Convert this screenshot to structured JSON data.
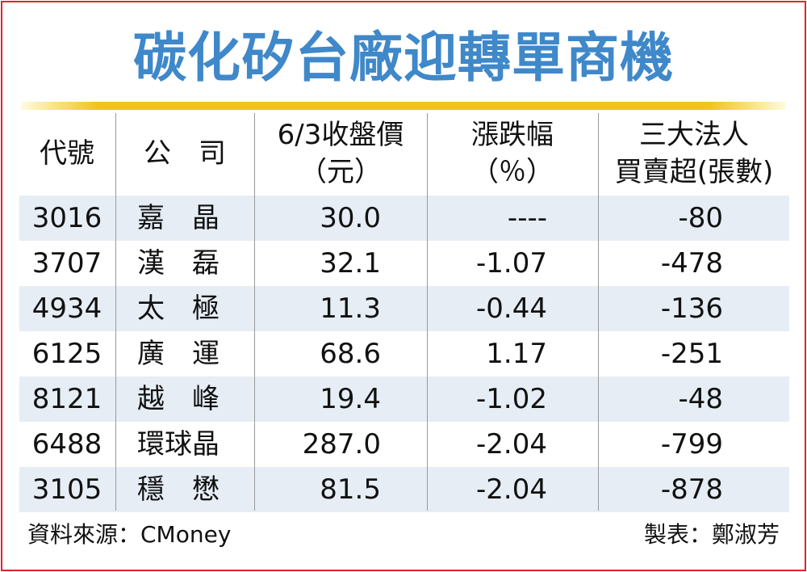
{
  "title": "碳化矽台廠迎轉單商機",
  "table": {
    "headers": [
      [
        "代號"
      ],
      [
        "公　司"
      ],
      [
        "6/3收盤價",
        "（元）"
      ],
      [
        "漲跌幅",
        "（％）"
      ],
      [
        "三大法人",
        "買賣超(張數)"
      ]
    ],
    "rows": [
      {
        "code": "3016",
        "company": "嘉　晶",
        "close": "30.0",
        "change": "----",
        "net": "-80"
      },
      {
        "code": "3707",
        "company": "漢　磊",
        "close": "32.1",
        "change": "-1.07",
        "net": "-478"
      },
      {
        "code": "4934",
        "company": "太　極",
        "close": "11.3",
        "change": "-0.44",
        "net": "-136"
      },
      {
        "code": "6125",
        "company": "廣　運",
        "close": "68.6",
        "change": "1.17",
        "net": "-251"
      },
      {
        "code": "8121",
        "company": "越　峰",
        "close": "19.4",
        "change": "-1.02",
        "net": "-48"
      },
      {
        "code": "6488",
        "company": "環球晶",
        "close": "287.0",
        "change": "-2.04",
        "net": "-799"
      },
      {
        "code": "3105",
        "company": "穩　懋",
        "close": "81.5",
        "change": "-2.04",
        "net": "-878"
      }
    ]
  },
  "footer": {
    "source": "資料來源：CMoney",
    "author": "製表：鄭淑芳"
  },
  "colors": {
    "title": "#3f88c9",
    "rule": "#f2c418",
    "frame": "#e2252b",
    "row_shade": "#e6edf5"
  }
}
